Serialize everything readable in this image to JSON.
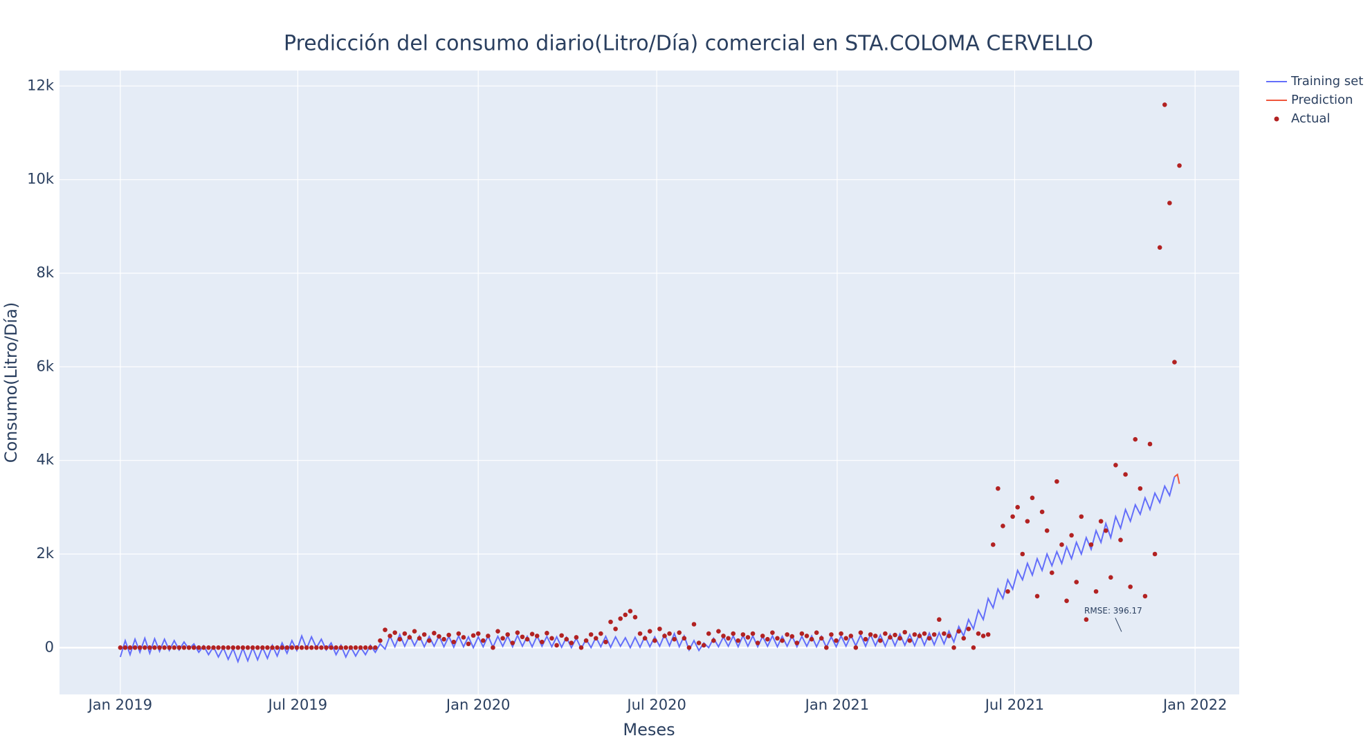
{
  "chart_data": {
    "type": "line",
    "title": "Predicción del consumo diario(Litro/Día) comercial en STA.COLOMA CERVELLO",
    "x_label": "Meses",
    "y_label": "Consumo(Litro/Día)",
    "x": [
      "2019-01-01",
      "2019-01-06",
      "2019-01-11",
      "2019-01-16",
      "2019-01-21",
      "2019-01-26",
      "2019-01-31",
      "2019-02-05",
      "2019-02-10",
      "2019-02-15",
      "2019-02-20",
      "2019-02-25",
      "2019-03-02",
      "2019-03-07",
      "2019-03-12",
      "2019-03-17",
      "2019-03-22",
      "2019-03-27",
      "2019-04-01",
      "2019-04-06",
      "2019-04-11",
      "2019-04-16",
      "2019-04-21",
      "2019-04-26",
      "2019-05-01",
      "2019-05-06",
      "2019-05-11",
      "2019-05-16",
      "2019-05-21",
      "2019-05-26",
      "2019-05-31",
      "2019-06-05",
      "2019-06-10",
      "2019-06-15",
      "2019-06-20",
      "2019-06-25",
      "2019-06-30",
      "2019-07-05",
      "2019-07-10",
      "2019-07-15",
      "2019-07-20",
      "2019-07-25",
      "2019-07-30",
      "2019-08-04",
      "2019-08-09",
      "2019-08-14",
      "2019-08-19",
      "2019-08-24",
      "2019-08-29",
      "2019-09-03",
      "2019-09-08",
      "2019-09-13",
      "2019-09-18",
      "2019-09-23",
      "2019-09-28",
      "2019-10-03",
      "2019-10-08",
      "2019-10-13",
      "2019-10-18",
      "2019-10-23",
      "2019-10-28",
      "2019-11-02",
      "2019-11-07",
      "2019-11-12",
      "2019-11-17",
      "2019-11-22",
      "2019-11-27",
      "2019-12-02",
      "2019-12-07",
      "2019-12-12",
      "2019-12-17",
      "2019-12-22",
      "2019-12-27",
      "2020-01-01",
      "2020-01-06",
      "2020-01-11",
      "2020-01-16",
      "2020-01-21",
      "2020-01-26",
      "2020-01-31",
      "2020-02-05",
      "2020-02-10",
      "2020-02-15",
      "2020-02-20",
      "2020-02-25",
      "2020-03-01",
      "2020-03-06",
      "2020-03-11",
      "2020-03-16",
      "2020-03-21",
      "2020-03-26",
      "2020-03-31",
      "2020-04-05",
      "2020-04-10",
      "2020-04-15",
      "2020-04-20",
      "2020-04-25",
      "2020-04-30",
      "2020-05-05",
      "2020-05-10",
      "2020-05-15",
      "2020-05-20",
      "2020-05-25",
      "2020-05-30",
      "2020-06-04",
      "2020-06-09",
      "2020-06-14",
      "2020-06-19",
      "2020-06-24",
      "2020-06-29",
      "2020-07-04",
      "2020-07-09",
      "2020-07-14",
      "2020-07-19",
      "2020-07-24",
      "2020-07-29",
      "2020-08-03",
      "2020-08-08",
      "2020-08-13",
      "2020-08-18",
      "2020-08-23",
      "2020-08-28",
      "2020-09-02",
      "2020-09-07",
      "2020-09-12",
      "2020-09-17",
      "2020-09-22",
      "2020-09-27",
      "2020-10-02",
      "2020-10-07",
      "2020-10-12",
      "2020-10-17",
      "2020-10-22",
      "2020-10-27",
      "2020-11-01",
      "2020-11-06",
      "2020-11-11",
      "2020-11-16",
      "2020-11-21",
      "2020-11-26",
      "2020-12-01",
      "2020-12-06",
      "2020-12-11",
      "2020-12-16",
      "2020-12-21",
      "2020-12-26",
      "2020-12-31",
      "2021-01-05",
      "2021-01-10",
      "2021-01-15",
      "2021-01-20",
      "2021-01-25",
      "2021-01-30",
      "2021-02-04",
      "2021-02-09",
      "2021-02-14",
      "2021-02-19",
      "2021-02-24",
      "2021-03-01",
      "2021-03-06",
      "2021-03-11",
      "2021-03-16",
      "2021-03-21",
      "2021-03-26",
      "2021-03-31",
      "2021-04-05",
      "2021-04-10",
      "2021-04-15",
      "2021-04-20",
      "2021-04-25",
      "2021-04-30",
      "2021-05-05",
      "2021-05-10",
      "2021-05-15",
      "2021-05-20",
      "2021-05-25",
      "2021-05-30",
      "2021-06-04",
      "2021-06-09",
      "2021-06-14",
      "2021-06-19",
      "2021-06-24",
      "2021-06-29",
      "2021-07-04",
      "2021-07-09",
      "2021-07-14",
      "2021-07-19",
      "2021-07-24",
      "2021-07-29",
      "2021-08-03",
      "2021-08-08",
      "2021-08-13",
      "2021-08-18",
      "2021-08-23",
      "2021-08-28",
      "2021-09-02",
      "2021-09-07",
      "2021-09-12",
      "2021-09-17",
      "2021-09-22",
      "2021-09-27",
      "2021-10-02",
      "2021-10-07",
      "2021-10-12",
      "2021-10-17",
      "2021-10-22",
      "2021-10-27",
      "2021-11-01",
      "2021-11-06",
      "2021-11-11",
      "2021-11-16",
      "2021-11-21",
      "2021-11-26",
      "2021-12-01",
      "2021-12-06",
      "2021-12-11",
      "2021-12-16"
    ],
    "series": [
      {
        "name": "Training set",
        "color": "#636efa",
        "mode": "lines",
        "values": [
          -200,
          150,
          -150,
          180,
          -100,
          200,
          -120,
          190,
          -80,
          180,
          -60,
          150,
          -50,
          120,
          -30,
          80,
          -100,
          40,
          -150,
          20,
          -200,
          0,
          -250,
          -20,
          -300,
          -10,
          -280,
          0,
          -260,
          10,
          -230,
          50,
          -180,
          100,
          -120,
          150,
          -60,
          250,
          -20,
          230,
          0,
          180,
          -50,
          100,
          -150,
          50,
          -200,
          20,
          -180,
          10,
          -150,
          50,
          -100,
          80,
          -30,
          250,
          20,
          280,
          30,
          260,
          40,
          250,
          20,
          240,
          30,
          250,
          20,
          240,
          10,
          250,
          20,
          230,
          0,
          230,
          20,
          250,
          10,
          240,
          30,
          250,
          20,
          260,
          30,
          240,
          20,
          250,
          30,
          240,
          20,
          230,
          10,
          220,
          0,
          200,
          -20,
          180,
          0,
          220,
          20,
          240,
          10,
          230,
          30,
          210,
          0,
          220,
          10,
          240,
          20,
          230,
          30,
          280,
          40,
          300,
          20,
          250,
          -50,
          150,
          -60,
          100,
          0,
          200,
          20,
          230,
          30,
          250,
          20,
          260,
          30,
          250,
          20,
          240,
          30,
          250,
          20,
          240,
          30,
          250,
          20,
          240,
          30,
          250,
          20,
          240,
          10,
          230,
          20,
          250,
          30,
          260,
          40,
          270,
          30,
          280,
          40,
          270,
          30,
          280,
          40,
          290,
          50,
          280,
          40,
          300,
          50,
          310,
          60,
          320,
          80,
          350,
          120,
          450,
          250,
          600,
          400,
          800,
          600,
          1050,
          850,
          1250,
          1050,
          1450,
          1250,
          1650,
          1450,
          1800,
          1550,
          1900,
          1650,
          2000,
          1750,
          2050,
          1800,
          2150,
          1900,
          2250,
          2000,
          2350,
          2100,
          2500,
          2250,
          2650,
          2350,
          2800,
          2550,
          2950,
          2700,
          3050,
          2850,
          3200,
          2950,
          3300,
          3100,
          3450,
          3250,
          3650,
          null
        ]
      },
      {
        "name": "Prediction",
        "color": "#ef553b",
        "mode": "lines",
        "x": [
          "2021-12-11",
          "2021-12-14",
          "2021-12-16"
        ],
        "values": [
          3650,
          3700,
          3500
        ]
      },
      {
        "name": "Actual",
        "color": "#b22222",
        "mode": "markers",
        "values": [
          0,
          0,
          0,
          0,
          0,
          0,
          0,
          0,
          0,
          0,
          0,
          0,
          0,
          0,
          0,
          0,
          0,
          0,
          0,
          0,
          0,
          0,
          0,
          0,
          0,
          0,
          0,
          0,
          0,
          0,
          0,
          0,
          0,
          0,
          0,
          0,
          0,
          0,
          0,
          0,
          0,
          0,
          0,
          0,
          0,
          0,
          0,
          0,
          0,
          0,
          0,
          0,
          0,
          150,
          380,
          250,
          320,
          180,
          300,
          220,
          350,
          200,
          280,
          150,
          310,
          240,
          180,
          270,
          120,
          300,
          220,
          80,
          260,
          300,
          150,
          250,
          0,
          350,
          200,
          280,
          100,
          320,
          230,
          180,
          290,
          250,
          120,
          310,
          200,
          50,
          260,
          180,
          100,
          220,
          0,
          150,
          280,
          200,
          300,
          120,
          550,
          400,
          620,
          700,
          780,
          650,
          300,
          200,
          350,
          150,
          400,
          250,
          300,
          180,
          320,
          200,
          0,
          500,
          100,
          50,
          300,
          150,
          350,
          250,
          200,
          300,
          150,
          280,
          220,
          300,
          100,
          250,
          180,
          320,
          200,
          150,
          280,
          240,
          100,
          300,
          250,
          180,
          320,
          200,
          0,
          280,
          150,
          300,
          200,
          250,
          0,
          320,
          180,
          280,
          250,
          150,
          300,
          220,
          270,
          200,
          330,
          150,
          280,
          250,
          300,
          200,
          280,
          600,
          300,
          250,
          0,
          350,
          200,
          400,
          0,
          300,
          250,
          280,
          2200,
          3400,
          2600,
          1200,
          2800,
          3000,
          2000,
          2700,
          3200,
          1100,
          2900,
          2500,
          1600,
          3550,
          2200,
          1000,
          2400,
          1400,
          2800,
          600,
          2200,
          1200,
          2700,
          2500,
          1500,
          3900,
          2300,
          3700,
          1300,
          4450,
          3400,
          1100,
          4350,
          2000,
          8550,
          11600,
          9500,
          6100,
          10300
        ]
      }
    ],
    "xlim": [
      "2018-10-31",
      "2022-02-15"
    ],
    "xticks": [
      {
        "value": "2019-01-01",
        "label": "Jan 2019"
      },
      {
        "value": "2019-07-01",
        "label": "Jul 2019"
      },
      {
        "value": "2020-01-01",
        "label": "Jan 2020"
      },
      {
        "value": "2020-07-01",
        "label": "Jul 2020"
      },
      {
        "value": "2021-01-01",
        "label": "Jan 2021"
      },
      {
        "value": "2021-07-01",
        "label": "Jul 2021"
      },
      {
        "value": "2022-01-01",
        "label": "Jan 2022"
      }
    ],
    "ylim": [
      -1000,
      12330
    ],
    "yticks": [
      0,
      {
        "value": 2000,
        "label": "2k"
      },
      {
        "value": 4000,
        "label": "4k"
      },
      {
        "value": 6000,
        "label": "6k"
      },
      {
        "value": 8000,
        "label": "8k"
      },
      {
        "value": 10000,
        "label": "10k"
      },
      {
        "value": 12000,
        "label": "12k"
      }
    ],
    "grid": true,
    "legend": "outside-top-right",
    "annotations": [
      {
        "text": "RMSE: 396.17",
        "x": "2021-10-18",
        "y": 340
      }
    ]
  }
}
